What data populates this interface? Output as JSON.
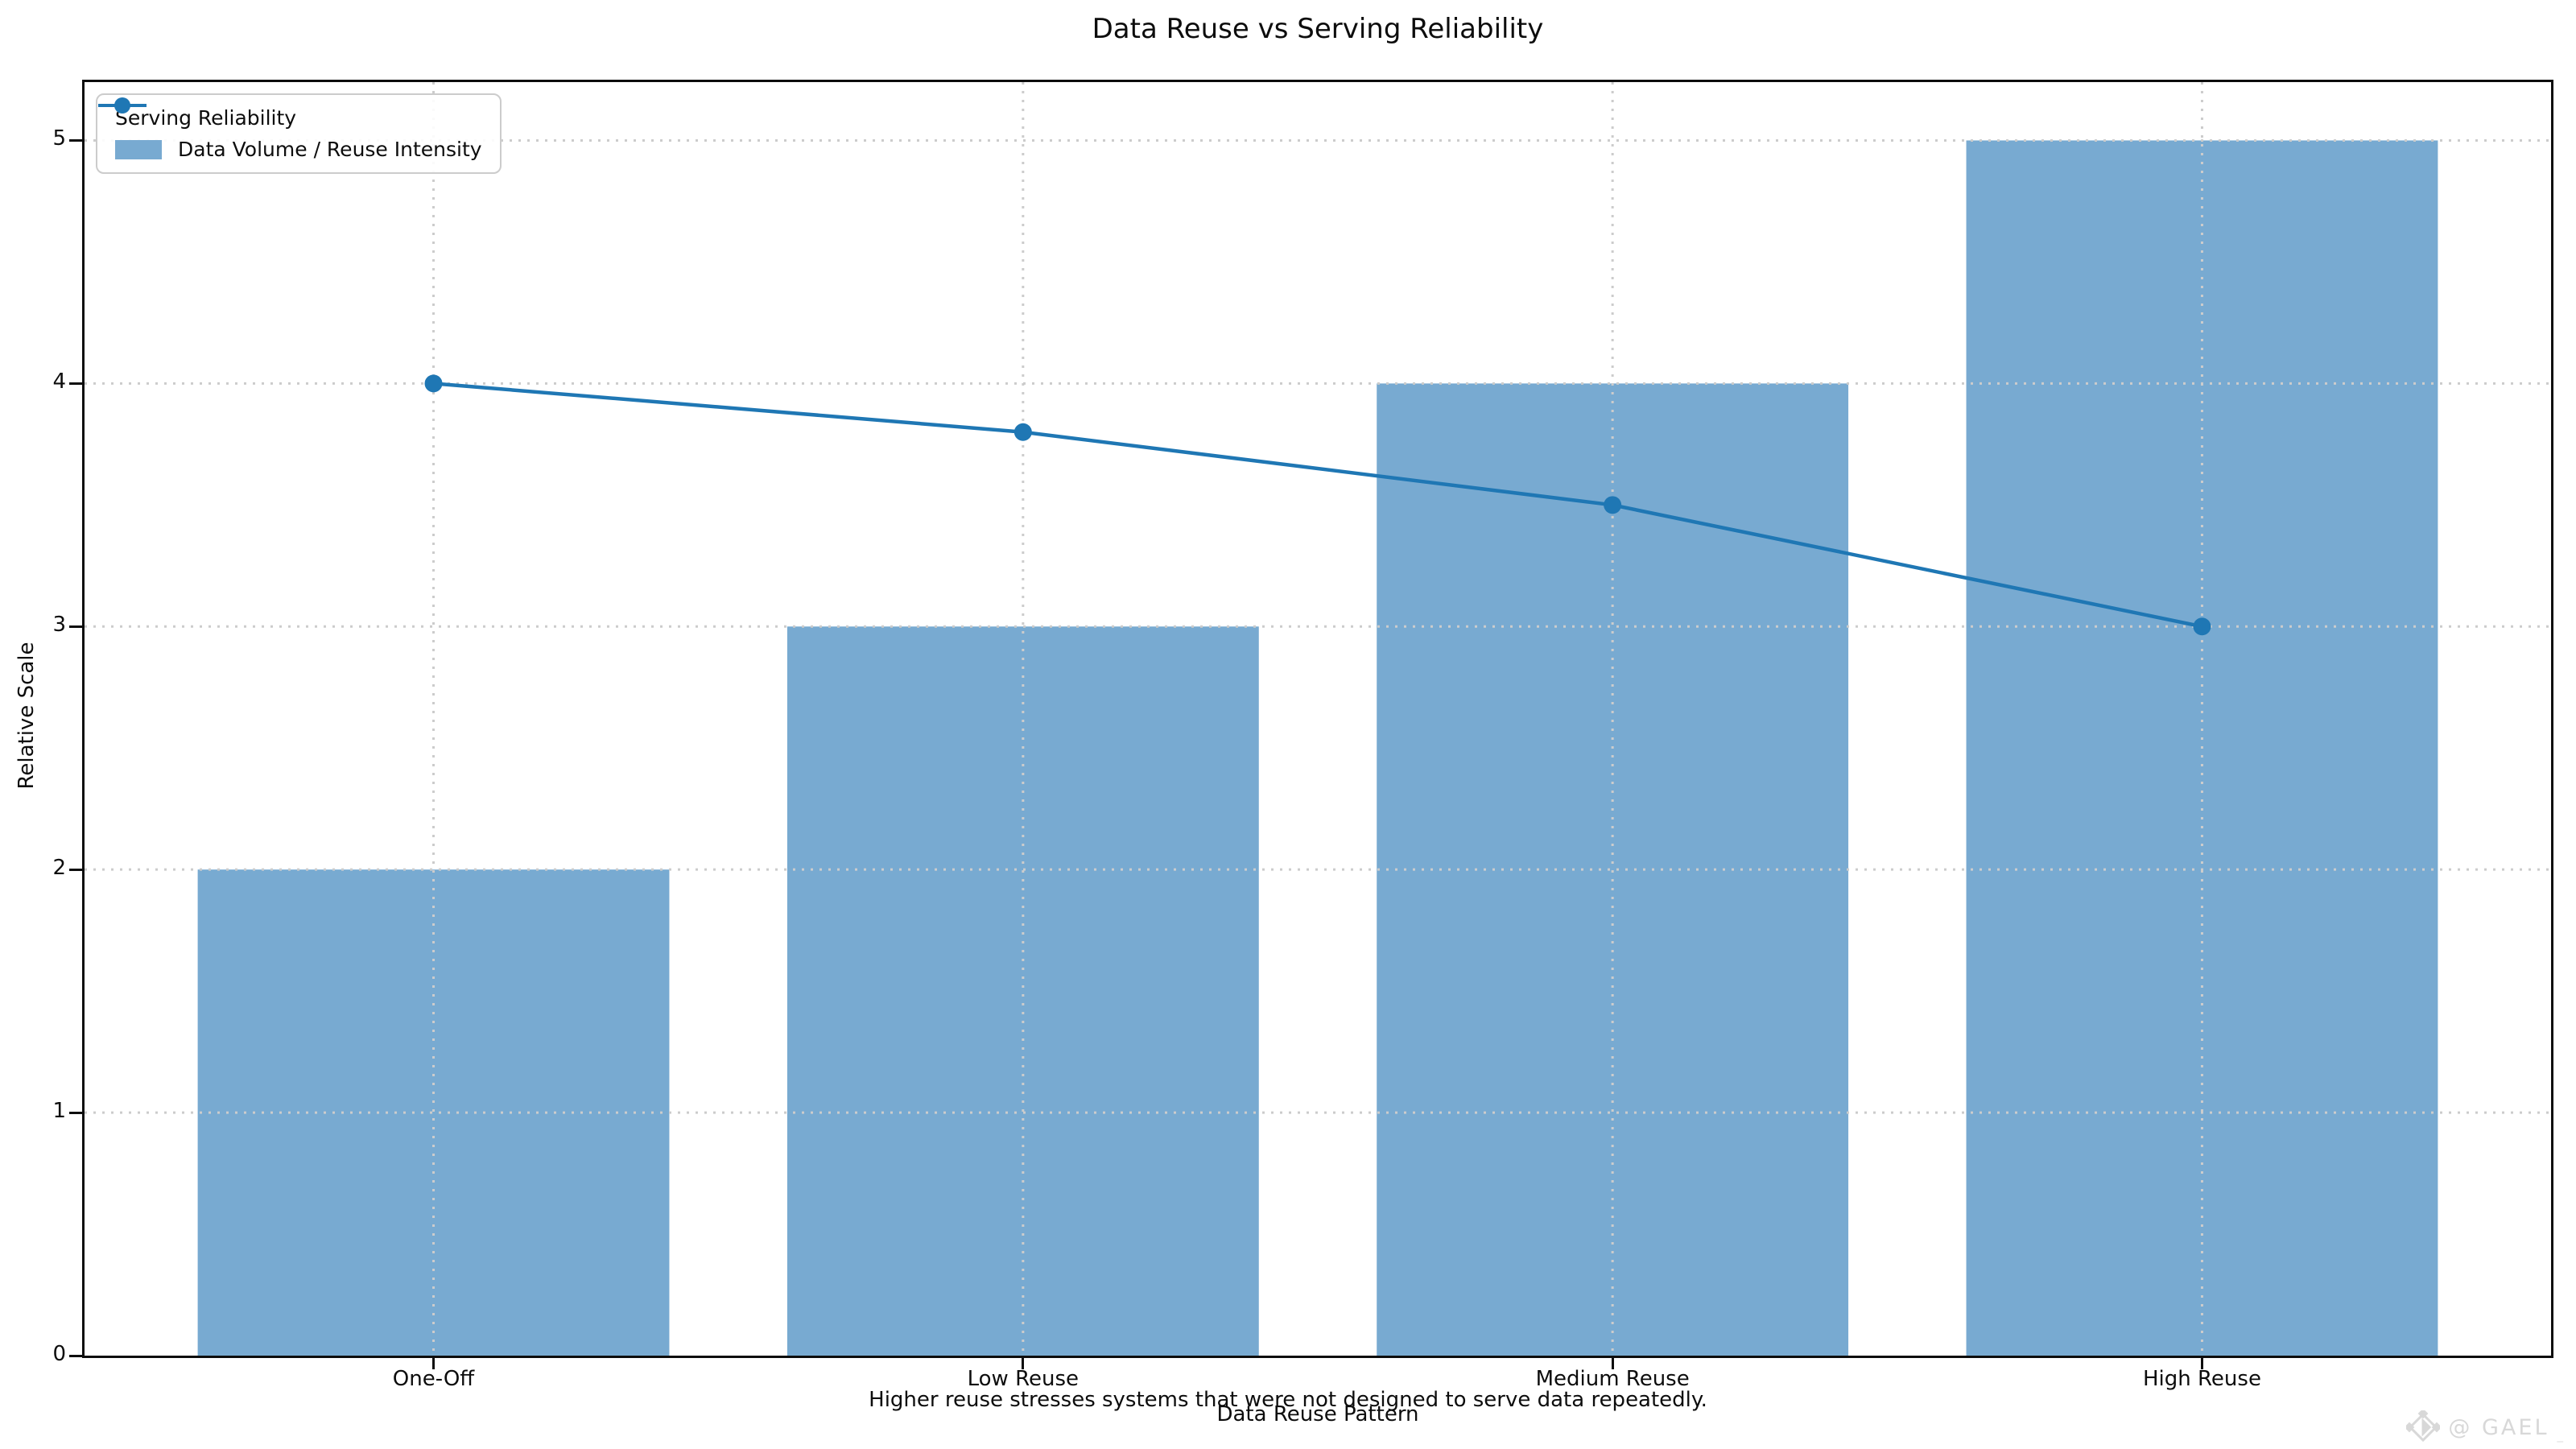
{
  "figure": {
    "caption": "Higher reuse stresses systems that were not designed to serve data repeatedly.",
    "watermark": {
      "icon": "gael-diamond-logo-icon",
      "text": "@ GAEL",
      "suffix": "_",
      "color": "#d8d8d8"
    }
  },
  "chart_data": {
    "type": "bar+line",
    "title": "Data Reuse vs Serving Reliability",
    "categories": [
      "One-Off",
      "Low Reuse",
      "Medium Reuse",
      "High Reuse"
    ],
    "series": [
      {
        "name": "Serving Reliability",
        "type": "line",
        "marker": "circle",
        "color": "#1f77b4",
        "values": [
          4.0,
          3.8,
          3.5,
          3.0
        ]
      },
      {
        "name": "Data Volume / Reuse Intensity",
        "type": "bar",
        "color": "#78aad1",
        "values": [
          2,
          3,
          4,
          5
        ]
      }
    ],
    "xlabel": "Data Reuse Pattern",
    "ylabel": "Relative Scale",
    "ylim": [
      0,
      5.24
    ],
    "yticks": [
      0,
      1,
      2,
      3,
      4,
      5
    ],
    "xlim_pad": 0.592,
    "bar_width": 0.8,
    "grid": true,
    "grid_color": "#cccccc",
    "axis_color": "#0d0d0d",
    "legend_position": "upper left"
  }
}
